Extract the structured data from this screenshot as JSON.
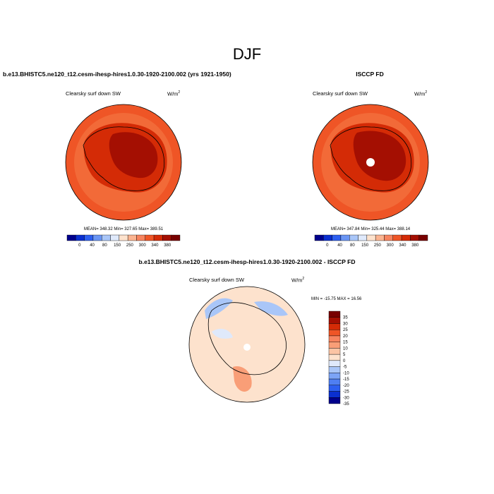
{
  "main_title": "DJF",
  "panels": {
    "left": {
      "title": "b.e13.BHISTC5.ne120_t12.cesm-ihesp-hires1.0.30-1920-2100.002 (yrs 1921-1950)",
      "field_label": "Clearsky surf down SW",
      "units": "W/m",
      "units_sup": "2",
      "stats": "MEAN= 348.32  Min= 327.65  Max= 389.51"
    },
    "right": {
      "title": "ISCCP FD",
      "field_label": "Clearsky surf down SW",
      "units": "W/m",
      "units_sup": "2",
      "stats": "MEAN= 347.84  Min= 325.44  Max= 388.14"
    },
    "diff": {
      "title": "b.e13.BHISTC5.ne120_t12.cesm-ihesp-hires1.0.30-1920-2100.002 - ISCCP FD",
      "field_label": "Clearsky surf down SW",
      "units": "W/m",
      "units_sup": "2",
      "stats": "MIN = -15.75 MAX =  16.56"
    }
  },
  "colorbars": {
    "abs": {
      "colors": [
        "#00008c",
        "#0a2fd0",
        "#2d5ff0",
        "#6a95f4",
        "#a9c6f8",
        "#dfe9fb",
        "#fde2cd",
        "#fbb491",
        "#f7845f",
        "#ef5526",
        "#d42b06",
        "#a40f02",
        "#780000"
      ],
      "labels": [
        "0",
        "40",
        "80",
        "150",
        "250",
        "300",
        "340",
        "380"
      ]
    },
    "diff": {
      "colors": [
        "#00008c",
        "#0a2fd0",
        "#2d5ff0",
        "#4f7ff2",
        "#7ca4f6",
        "#a9c6f8",
        "#dfe9fb",
        "#fde2cd",
        "#fbc4a4",
        "#f99e77",
        "#f7845f",
        "#ef5526",
        "#d42b06",
        "#a40f02",
        "#780000"
      ],
      "labels": [
        "35",
        "30",
        "25",
        "20",
        "15",
        "10",
        "5",
        "0",
        "-5",
        "-10",
        "-15",
        "-20",
        "-25",
        "-30",
        "-35"
      ]
    }
  },
  "chart_data": [
    {
      "type": "heatmap",
      "projection": "south polar stereographic",
      "title": "b.e13.BHISTC5.ne120_t12.cesm-ihesp-hires1.0.30-1920-2100.002 (yrs 1921-1950)",
      "variable": "Clearsky surf down SW",
      "units": "W/m2",
      "levels": [
        0,
        40,
        80,
        150,
        250,
        300,
        340,
        380
      ],
      "mean": 348.32,
      "min": 327.65,
      "max": 389.51
    },
    {
      "type": "heatmap",
      "projection": "south polar stereographic",
      "title": "ISCCP FD",
      "variable": "Clearsky surf down SW",
      "units": "W/m2",
      "levels": [
        0,
        40,
        80,
        150,
        250,
        300,
        340,
        380
      ],
      "mean": 347.84,
      "min": 325.44,
      "max": 388.14
    },
    {
      "type": "heatmap",
      "projection": "south polar stereographic",
      "title": "b.e13.BHISTC5.ne120_t12.cesm-ihesp-hires1.0.30-1920-2100.002 - ISCCP FD",
      "variable": "Clearsky surf down SW",
      "units": "W/m2",
      "levels": [
        -35,
        -30,
        -25,
        -20,
        -15,
        -10,
        -5,
        0,
        5,
        10,
        15,
        20,
        25,
        30,
        35
      ],
      "min": -15.75,
      "max": 16.56
    }
  ]
}
